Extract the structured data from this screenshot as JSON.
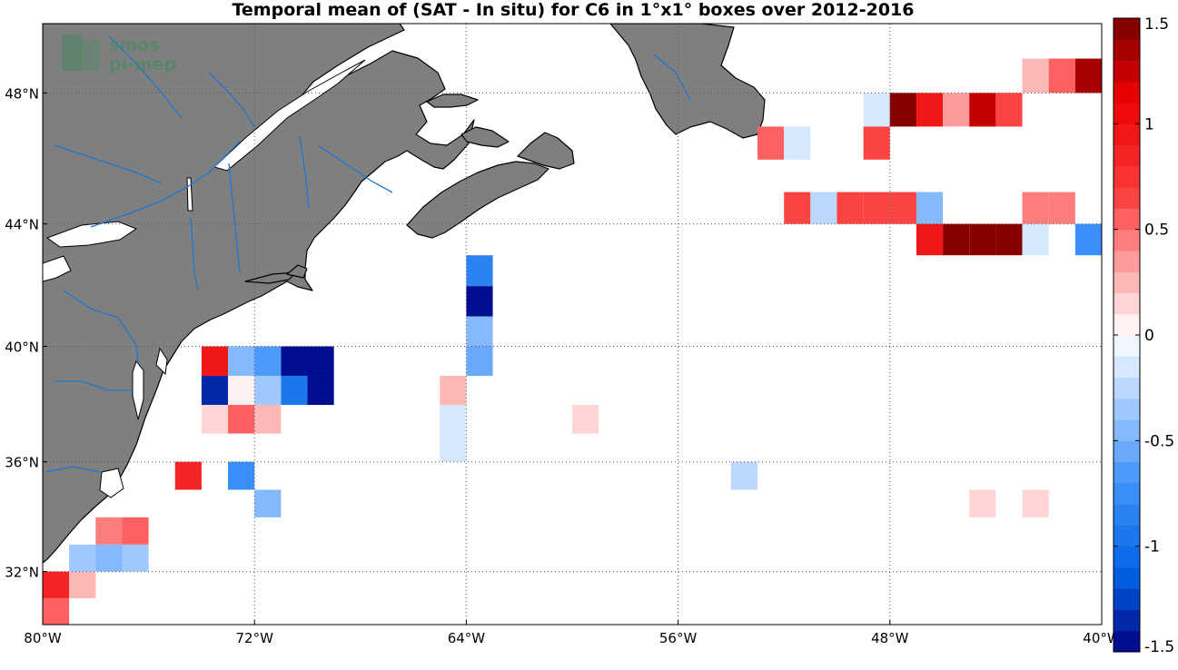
{
  "title": "Temporal mean of (SAT - In situ) for C6 in 1°x1° boxes over 2012-2016",
  "watermark": {
    "line1": "smos",
    "line2": "pi-mep",
    "color": "#3f8a5c"
  },
  "colors": {
    "land": "#7f7f7f",
    "coast": "#000000",
    "river": "#1f77d0",
    "grid": "#555555"
  },
  "axes": {
    "lon_range": [
      -80,
      -40
    ],
    "lat_range": [
      30,
      50
    ],
    "x_ticks": [
      {
        "lon": -80,
        "label": "80°W"
      },
      {
        "lon": -72,
        "label": "72°W"
      },
      {
        "lon": -64,
        "label": "64°W"
      },
      {
        "lon": -56,
        "label": "56°W"
      },
      {
        "lon": -48,
        "label": "48°W"
      },
      {
        "lon": -40,
        "label": "40°W"
      }
    ],
    "y_ticks": [
      {
        "lat": 32,
        "label": "32°N"
      },
      {
        "lat": 36,
        "label": "36°N"
      },
      {
        "lat": 40,
        "label": "40°N"
      },
      {
        "lat": 44,
        "label": "44°N"
      },
      {
        "lat": 48,
        "label": "48°N"
      }
    ]
  },
  "colorbar": {
    "range": [
      -1.5,
      1.5
    ],
    "ticks": [
      {
        "value": 1.5,
        "label": "1.5"
      },
      {
        "value": 1,
        "label": "1"
      },
      {
        "value": 0.5,
        "label": "0.5"
      },
      {
        "value": 0,
        "label": "0"
      },
      {
        "value": -0.5,
        "label": "-0.5"
      },
      {
        "value": -1,
        "label": "-1"
      },
      {
        "value": -1.5,
        "label": "-1.5"
      }
    ]
  },
  "chart_data": {
    "type": "heatmap",
    "title": "Temporal mean of (SAT - In situ) for C6 in 1°x1° boxes over 2012-2016",
    "xlabel": "",
    "ylabel": "",
    "cell_size_deg": 1,
    "cells": [
      {
        "lon": -43,
        "lat": 48,
        "value": 0.25
      },
      {
        "lon": -42,
        "lat": 48,
        "value": 0.5
      },
      {
        "lon": -41,
        "lat": 48,
        "value": 1.35
      },
      {
        "lon": -40,
        "lat": 48,
        "value": 0.25
      },
      {
        "lon": -49,
        "lat": 47,
        "value": -0.1
      },
      {
        "lon": -48,
        "lat": 47,
        "value": 1.4
      },
      {
        "lon": -47,
        "lat": 47,
        "value": 0.95
      },
      {
        "lon": -46,
        "lat": 47,
        "value": 0.3
      },
      {
        "lon": -45,
        "lat": 47,
        "value": 1.3
      },
      {
        "lon": -44,
        "lat": 47,
        "value": 0.65
      },
      {
        "lon": -53,
        "lat": 46,
        "value": 0.5
      },
      {
        "lon": -52,
        "lat": 46,
        "value": -0.1
      },
      {
        "lon": -49,
        "lat": 46,
        "value": 0.65
      },
      {
        "lon": -52,
        "lat": 44,
        "value": 0.65
      },
      {
        "lon": -51,
        "lat": 44,
        "value": -0.25
      },
      {
        "lon": -50,
        "lat": 44,
        "value": 0.65
      },
      {
        "lon": -49,
        "lat": 44,
        "value": 0.65
      },
      {
        "lon": -48,
        "lat": 44,
        "value": 0.65
      },
      {
        "lon": -47,
        "lat": 44,
        "value": -0.45
      },
      {
        "lon": -43,
        "lat": 44,
        "value": 0.4
      },
      {
        "lon": -42,
        "lat": 44,
        "value": 0.4
      },
      {
        "lon": -47,
        "lat": 43,
        "value": 0.95
      },
      {
        "lon": -46,
        "lat": 43,
        "value": 1.4
      },
      {
        "lon": -45,
        "lat": 43,
        "value": 1.4
      },
      {
        "lon": -44,
        "lat": 43,
        "value": 1.4
      },
      {
        "lon": -43,
        "lat": 43,
        "value": -0.1
      },
      {
        "lon": -41,
        "lat": 43,
        "value": -0.75
      },
      {
        "lon": -40,
        "lat": 43,
        "value": -0.75
      },
      {
        "lon": -40,
        "lat": 42,
        "value": -0.4
      },
      {
        "lon": -64,
        "lat": 42,
        "value": -0.85
      },
      {
        "lon": -64,
        "lat": 41,
        "value": -1.45
      },
      {
        "lon": -64,
        "lat": 40,
        "value": -0.5
      },
      {
        "lon": -64,
        "lat": 39,
        "value": -0.6
      },
      {
        "lon": -74,
        "lat": 39,
        "value": 0.95
      },
      {
        "lon": -73,
        "lat": 39,
        "value": -0.45
      },
      {
        "lon": -72,
        "lat": 39,
        "value": -0.65
      },
      {
        "lon": -71,
        "lat": 39,
        "value": -1.45
      },
      {
        "lon": -70,
        "lat": 39,
        "value": -1.45
      },
      {
        "lon": -74,
        "lat": 38,
        "value": -1.35
      },
      {
        "lon": -73,
        "lat": 38,
        "value": 0
      },
      {
        "lon": -72,
        "lat": 38,
        "value": -0.35
      },
      {
        "lon": -71,
        "lat": 38,
        "value": -0.9
      },
      {
        "lon": -70,
        "lat": 38,
        "value": -1.45
      },
      {
        "lon": -65,
        "lat": 38,
        "value": 0.2
      },
      {
        "lon": -74,
        "lat": 37,
        "value": 0.15
      },
      {
        "lon": -73,
        "lat": 37,
        "value": 0.55
      },
      {
        "lon": -72,
        "lat": 37,
        "value": 0.2
      },
      {
        "lon": -65,
        "lat": 37,
        "value": -0.1
      },
      {
        "lon": -65,
        "lat": 36,
        "value": -0.1
      },
      {
        "lon": -60,
        "lat": 37,
        "value": 0.15
      },
      {
        "lon": -75,
        "lat": 35,
        "value": 0.85
      },
      {
        "lon": -73,
        "lat": 35,
        "value": -0.75
      },
      {
        "lon": -54,
        "lat": 35,
        "value": -0.25
      },
      {
        "lon": -72,
        "lat": 34,
        "value": -0.5
      },
      {
        "lon": -45,
        "lat": 34,
        "value": 0.15
      },
      {
        "lon": -43,
        "lat": 34,
        "value": 0.15
      },
      {
        "lon": -78,
        "lat": 33,
        "value": 0.4
      },
      {
        "lon": -77,
        "lat": 33,
        "value": 0.5
      },
      {
        "lon": -79,
        "lat": 32,
        "value": -0.3
      },
      {
        "lon": -78,
        "lat": 32,
        "value": -0.5
      },
      {
        "lon": -77,
        "lat": 32,
        "value": -0.35
      },
      {
        "lon": -80,
        "lat": 31,
        "value": 0.85
      },
      {
        "lon": -79,
        "lat": 31,
        "value": 0.25
      },
      {
        "lon": -80,
        "lat": 30,
        "value": 0.5
      },
      {
        "lon": -40,
        "lat": 30,
        "value": -0.3
      }
    ]
  }
}
